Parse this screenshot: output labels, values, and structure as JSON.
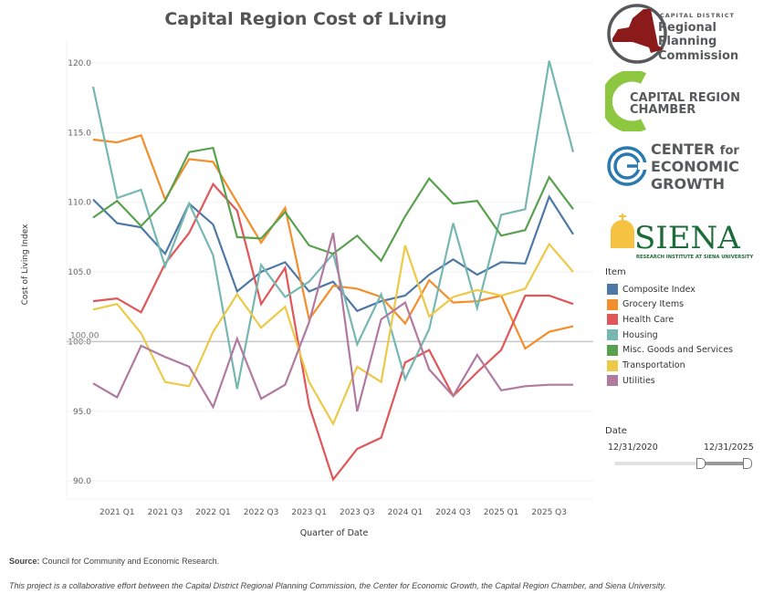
{
  "chart_data": {
    "type": "line",
    "title": "Capital Region Cost of Living",
    "xlabel": "Quarter of Date",
    "ylabel": "Cost of Living Index",
    "ylim": [
      89,
      121.5
    ],
    "yticks": [
      "90.0",
      "95.0",
      "100.0",
      "105.0",
      "110.0",
      "115.0",
      "120.0"
    ],
    "ytick_values": [
      90,
      95,
      100,
      105,
      110,
      115,
      120
    ],
    "x": [
      "2020 Q4",
      "2021 Q1",
      "2021 Q2",
      "2021 Q3",
      "2021 Q4",
      "2022 Q1",
      "2022 Q2",
      "2022 Q3",
      "2022 Q4",
      "2023 Q1",
      "2023 Q2",
      "2023 Q3",
      "2023 Q4",
      "2024 Q1",
      "2024 Q2",
      "2024 Q3",
      "2024 Q4",
      "2025 Q1",
      "2025 Q2",
      "2025 Q3",
      "2025 Q4"
    ],
    "xtick_labels": [
      "2021 Q1",
      "2021 Q3",
      "2022 Q1",
      "2022 Q3",
      "2023 Q1",
      "2023 Q3",
      "2024 Q1",
      "2024 Q3",
      "2025 Q1",
      "2025 Q3"
    ],
    "reference_line": {
      "value": 100,
      "label": "100.00"
    },
    "grid": true,
    "legend_placement": "right",
    "series": [
      {
        "name": "Composite Index",
        "color": "#4e79a7",
        "values": [
          110.2,
          108.5,
          108.2,
          106.3,
          109.9,
          108.4,
          103.6,
          105.0,
          105.7,
          103.6,
          104.3,
          102.2,
          102.9,
          103.3,
          104.8,
          105.9,
          104.8,
          105.7,
          105.6,
          110.4,
          107.7
        ]
      },
      {
        "name": "Grocery Items",
        "color": "#f28e2b",
        "values": [
          114.5,
          114.3,
          114.8,
          110.2,
          113.1,
          112.9,
          110.0,
          107.1,
          109.6,
          101.6,
          104.0,
          103.8,
          103.2,
          101.3,
          104.4,
          102.8,
          102.9,
          103.3,
          99.5,
          100.7,
          101.1
        ]
      },
      {
        "name": "Health Care",
        "color": "#e15759",
        "values": [
          102.9,
          103.1,
          102.1,
          105.6,
          107.8,
          111.3,
          109.4,
          102.7,
          105.3,
          95.4,
          90.1,
          92.3,
          93.1,
          98.5,
          99.4,
          96.1,
          97.8,
          99.4,
          103.3,
          103.3,
          102.7
        ]
      },
      {
        "name": "Housing",
        "color": "#76b7b2",
        "values": [
          118.3,
          110.3,
          110.9,
          105.4,
          109.9,
          106.2,
          96.6,
          105.5,
          103.2,
          104.3,
          106.3,
          99.8,
          103.4,
          97.3,
          100.9,
          108.5,
          102.4,
          109.1,
          109.5,
          120.15,
          113.6
        ]
      },
      {
        "name": "Misc. Goods and Services",
        "color": "#59a14f",
        "values": [
          108.9,
          110.1,
          108.3,
          110.1,
          113.6,
          113.9,
          107.5,
          107.4,
          109.3,
          106.9,
          106.3,
          107.6,
          105.8,
          109.0,
          111.7,
          109.9,
          110.1,
          107.6,
          108.0,
          111.8,
          109.5
        ]
      },
      {
        "name": "Transportation",
        "color": "#edc948",
        "values": [
          102.3,
          102.7,
          100.6,
          97.1,
          96.8,
          100.7,
          103.4,
          101.0,
          102.5,
          97.1,
          94.1,
          98.2,
          97.1,
          106.9,
          101.8,
          103.2,
          103.7,
          103.3,
          103.8,
          107.0,
          105.0
        ]
      },
      {
        "name": "Utilities",
        "color": "#b07aa1",
        "values": [
          97.0,
          96.0,
          99.7,
          98.9,
          98.2,
          95.3,
          100.2,
          95.9,
          96.9,
          101.4,
          107.8,
          95.0,
          101.6,
          102.8,
          98.0,
          96.1,
          99.05,
          96.5,
          96.8,
          96.9,
          96.9
        ]
      }
    ]
  },
  "legend": {
    "title": "Item"
  },
  "date_filter": {
    "title": "Date",
    "start": "12/31/2020",
    "end": "12/31/2025",
    "selected_range": [
      "12/31/2020",
      "12/31/2025"
    ]
  },
  "footer": {
    "source_label": "Source:",
    "source_text": " Council for Community and Economic Research.",
    "note": "This project is a collaborative effort between the Capital District Regional Planning Commission, the Center for Economic Growth, the Capital Region Chamber, and Siena University."
  },
  "logos": {
    "cdrpc": {
      "line1": "CAPITAL DISTRICT",
      "line2": "Regional",
      "line3": "Planning",
      "line4": "Commission",
      "color": "#8b1a1a"
    },
    "chamber": {
      "line1": "CAPITAL REGION",
      "line2": "CHAMBER",
      "color": "#8dc63f"
    },
    "ceg": {
      "line1": "CENTER for",
      "line2": "ECONOMIC",
      "line3": "GROWTH",
      "color": "#2a7ab0"
    },
    "siena": {
      "line1": "SIENA",
      "line2": "RESEARCH INSTITUTE AT SIENA UNIVERSITY",
      "color": "#1e6b3a",
      "dome_color": "#f5c242"
    }
  }
}
